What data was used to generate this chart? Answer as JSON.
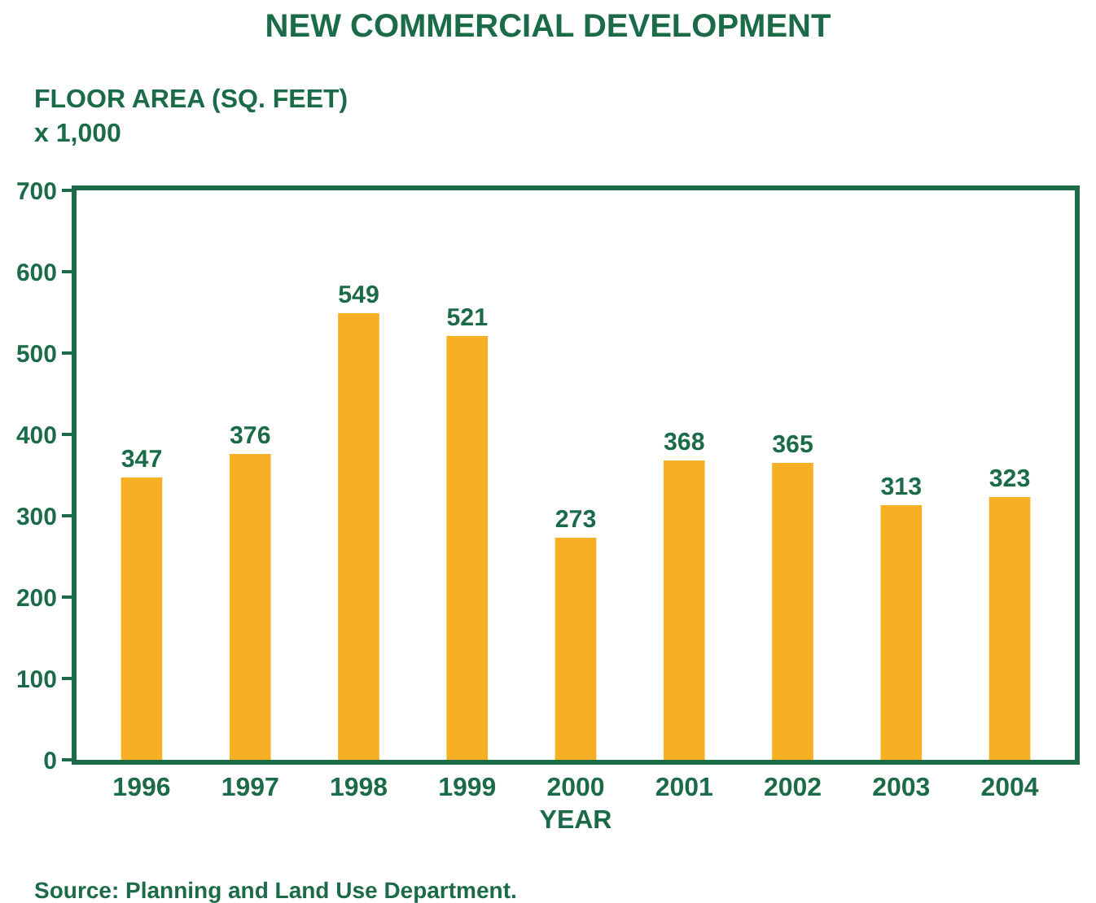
{
  "chart_data": {
    "type": "bar",
    "title": "NEW COMMERCIAL DEVELOPMENT",
    "ylabel": "FLOOR AREA (SQ. FEET)\nx 1,000",
    "xlabel": "YEAR",
    "categories": [
      "1996",
      "1997",
      "1998",
      "1999",
      "2000",
      "2001",
      "2002",
      "2003",
      "2004"
    ],
    "values": [
      347,
      376,
      549,
      521,
      273,
      368,
      365,
      313,
      323
    ],
    "color": "#f7b024",
    "data_labels": true,
    "ylim": [
      0,
      700
    ],
    "yticks": [
      0,
      100,
      200,
      300,
      400,
      500,
      600,
      700
    ],
    "annotations": [
      "Source: Planning and Land Use Department."
    ]
  }
}
